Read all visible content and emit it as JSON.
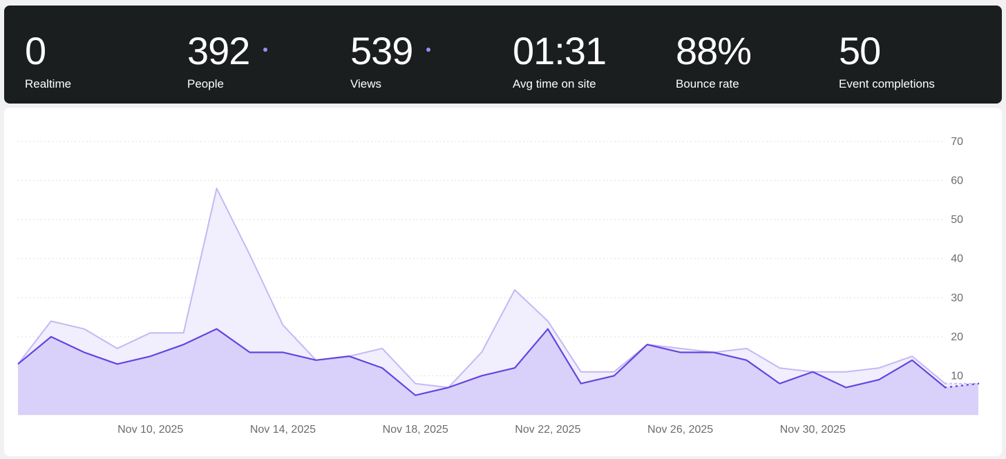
{
  "stats": [
    {
      "value": "0",
      "label": "Realtime",
      "dot": false
    },
    {
      "value": "392",
      "label": "People",
      "dot": true
    },
    {
      "value": "539",
      "label": "Views",
      "dot": true
    },
    {
      "value": "01:31",
      "label": "Avg time on site",
      "dot": false
    },
    {
      "value": "88%",
      "label": "Bounce rate",
      "dot": false
    },
    {
      "value": "50",
      "label": "Event completions",
      "dot": false
    }
  ],
  "colors": {
    "views_line": "#c4b8f5",
    "views_fill": "#f1eefd",
    "people_line": "#6344e0",
    "people_fill": "#d9d1fa",
    "dot": "#9b8cf0",
    "grid": "#d4d4d8"
  },
  "chart_data": {
    "type": "area",
    "title": "",
    "xlabel": "",
    "ylabel": "",
    "ylim": [
      0,
      70
    ],
    "y_ticks": [
      10,
      20,
      30,
      40,
      50,
      60,
      70
    ],
    "y_axis_position": "right",
    "grid": true,
    "x_start": "Nov 6, 2025",
    "x_tick_labels": [
      {
        "index": 4,
        "label": "Nov 10, 2025"
      },
      {
        "index": 8,
        "label": "Nov 14, 2025"
      },
      {
        "index": 12,
        "label": "Nov 18, 2025"
      },
      {
        "index": 16,
        "label": "Nov 22, 2025"
      },
      {
        "index": 20,
        "label": "Nov 26, 2025"
      },
      {
        "index": 24,
        "label": "Nov 30, 2025"
      }
    ],
    "series": [
      {
        "name": "Views",
        "values": [
          13,
          24,
          22,
          17,
          21,
          21,
          58,
          41,
          23,
          14,
          15,
          17,
          8,
          7,
          16,
          32,
          24,
          11,
          11,
          18,
          17,
          16,
          17,
          12,
          11,
          11,
          12,
          15,
          8,
          8
        ]
      },
      {
        "name": "People",
        "values": [
          13,
          20,
          16,
          13,
          15,
          18,
          22,
          16,
          16,
          14,
          15,
          12,
          5,
          7,
          10,
          12,
          22,
          8,
          10,
          18,
          16,
          16,
          14,
          8,
          11,
          7,
          9,
          14,
          7,
          8
        ]
      }
    ],
    "partial_last_point": true
  }
}
